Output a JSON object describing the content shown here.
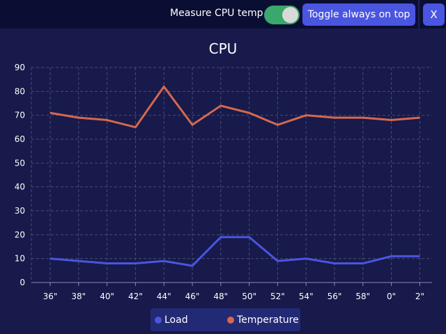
{
  "toolbar": {
    "measure_label": "Measure CPU temp",
    "measure_enabled": true,
    "always_on_top_label": "Toggle always on top",
    "close_label": "X"
  },
  "colors": {
    "background": "#171a4a",
    "toolbar": "#0b0e33",
    "button": "#4a55e0",
    "switch_on": "#3aa76d",
    "load_line": "#4a55e0",
    "temperature_line": "#d5684f",
    "legend_bg": "#232a75"
  },
  "chart_data": {
    "type": "line",
    "title": "CPU",
    "xlabel": "",
    "ylabel": "",
    "categories": [
      "36\"",
      "38\"",
      "40\"",
      "42\"",
      "44\"",
      "46\"",
      "48\"",
      "50\"",
      "52\"",
      "54\"",
      "56\"",
      "58\"",
      "0\"",
      "2\""
    ],
    "ylim": [
      0,
      90
    ],
    "yticks": [
      0,
      10,
      20,
      30,
      40,
      50,
      60,
      70,
      80,
      90
    ],
    "grid": true,
    "legend_position": "bottom",
    "series": [
      {
        "name": "Load",
        "color": "#4a55e0",
        "values": [
          10,
          9,
          8,
          8,
          9,
          7,
          19,
          19,
          9,
          10,
          8,
          8,
          11,
          11
        ]
      },
      {
        "name": "Temperature",
        "color": "#d5684f",
        "values": [
          71,
          69,
          68,
          65,
          82,
          66,
          74,
          71,
          66,
          70,
          69,
          69,
          68,
          69
        ]
      }
    ]
  }
}
